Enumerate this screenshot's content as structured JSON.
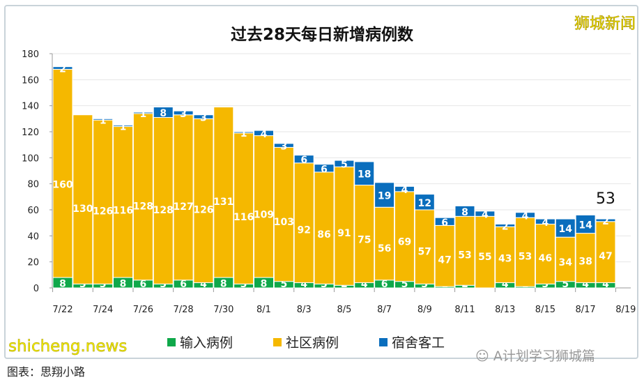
{
  "chart_data": {
    "type": "bar",
    "stacked": true,
    "title": "过去28天每日新增病例数",
    "categories": [
      "7/22",
      "7/23",
      "7/24",
      "7/25",
      "7/26",
      "7/27",
      "7/28",
      "7/29",
      "7/30",
      "7/31",
      "8/1",
      "8/2",
      "8/3",
      "8/4",
      "8/5",
      "8/6",
      "8/7",
      "8/8",
      "8/9",
      "8/10",
      "8/11",
      "8/12",
      "8/13",
      "8/14",
      "8/15",
      "8/16",
      "8/17",
      "8/18"
    ],
    "x_tick_labels": [
      "7/22",
      "7/24",
      "7/26",
      "7/28",
      "7/30",
      "8/1",
      "8/3",
      "8/5",
      "8/7",
      "8/9",
      "8/11",
      "8/13",
      "8/15",
      "8/17",
      "8/19"
    ],
    "series": [
      {
        "name": "输入病例",
        "color": "#0fa84a",
        "values": [
          8,
          3,
          3,
          8,
          6,
          3,
          6,
          4,
          8,
          3,
          8,
          5,
          4,
          3,
          2,
          4,
          6,
          5,
          3,
          1,
          2,
          0,
          4,
          1,
          3,
          5,
          4,
          4
        ]
      },
      {
        "name": "社区病例",
        "color": "#f5b800",
        "values": [
          160,
          130,
          126,
          116,
          128,
          128,
          127,
          126,
          131,
          116,
          109,
          103,
          92,
          86,
          91,
          75,
          56,
          69,
          57,
          47,
          53,
          55,
          43,
          53,
          46,
          34,
          38,
          47
        ]
      },
      {
        "name": "宿舍客工",
        "color": "#0a6ebd",
        "values": [
          2,
          0,
          1,
          1,
          1,
          8,
          3,
          3,
          0,
          1,
          4,
          3,
          6,
          6,
          5,
          18,
          19,
          4,
          12,
          6,
          8,
          4,
          2,
          4,
          4,
          14,
          14,
          2
        ]
      }
    ],
    "ylim": [
      0,
      180
    ],
    "yticks": [
      0,
      20,
      40,
      60,
      80,
      100,
      120,
      140,
      160,
      180
    ],
    "grid": true,
    "legend": "bottom",
    "annotation": "53"
  },
  "watermark_top": "狮城新闻",
  "watermark_wechat": "A计划学习狮城篇",
  "watermark_bottom": "shicheng.news",
  "caption": "图表：思翔小路"
}
